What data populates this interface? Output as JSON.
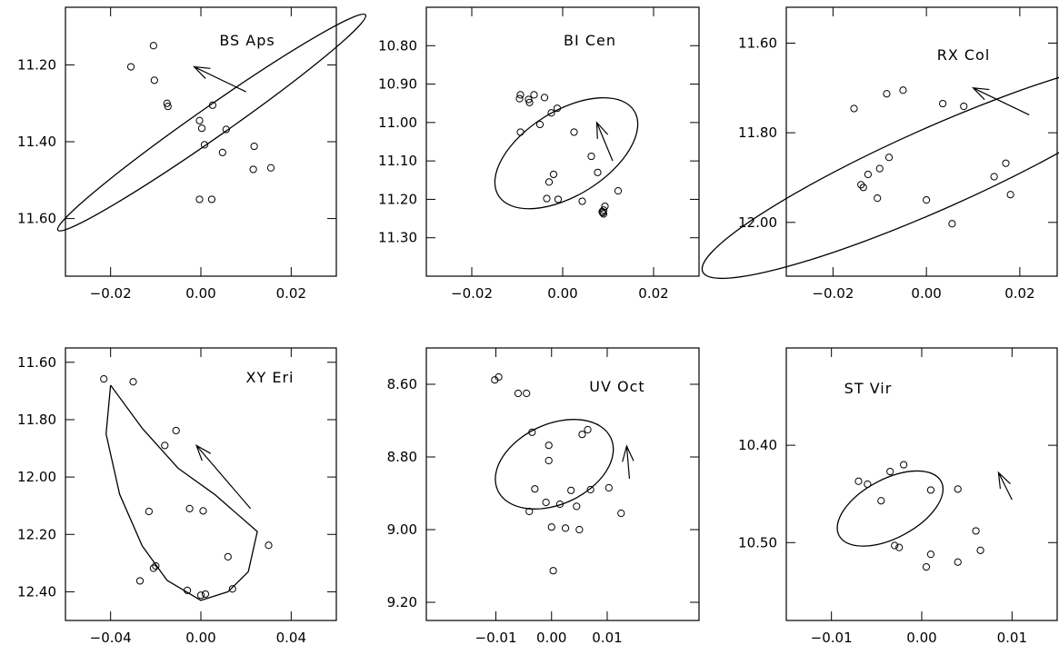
{
  "chart_data": [
    {
      "type": "scatter",
      "title": "BS Aps",
      "xlim": [
        -0.03,
        0.03
      ],
      "ylim": [
        11.75,
        11.05
      ],
      "xticks": [
        -0.02,
        0.0,
        0.02
      ],
      "xtick_labels": [
        "−0.02",
        "0.00",
        "0.02"
      ],
      "yticks": [
        11.2,
        11.4,
        11.6
      ],
      "ytick_labels": [
        "11.20",
        "11.40",
        "11.60"
      ],
      "points": [
        [
          -0.0155,
          11.205
        ],
        [
          -0.0105,
          11.15
        ],
        [
          -0.0103,
          11.24
        ],
        [
          -0.0075,
          11.3
        ],
        [
          -0.0073,
          11.308
        ],
        [
          -0.0003,
          11.345
        ],
        [
          0.0002,
          11.365
        ],
        [
          0.0008,
          11.408
        ],
        [
          0.0024,
          11.55
        ],
        [
          0.0026,
          11.305
        ],
        [
          0.0048,
          11.428
        ],
        [
          0.0056,
          11.368
        ],
        [
          0.0116,
          11.472
        ],
        [
          0.0118,
          11.412
        ],
        [
          0.0155,
          11.468
        ],
        [
          -0.0003,
          11.55
        ]
      ],
      "ellipse": {
        "cx": 0.0024,
        "cy": 11.35,
        "rx": 0.013,
        "ry": 0.072,
        "tilt_deg": -35
      },
      "arrow": {
        "from": [
          0.01,
          11.27
        ],
        "to": [
          -0.0015,
          11.205
        ]
      }
    },
    {
      "type": "scatter",
      "title": "BI Cen",
      "xlim": [
        -0.03,
        0.03
      ],
      "ylim": [
        11.4,
        10.7
      ],
      "xticks": [
        -0.02,
        0.0,
        0.02
      ],
      "xtick_labels": [
        "−0.02",
        "0.00",
        "0.02"
      ],
      "yticks": [
        10.8,
        10.9,
        11.0,
        11.1,
        11.2,
        11.3
      ],
      "ytick_labels": [
        "10.80",
        "10.90",
        "11.00",
        "11.10",
        "11.20",
        "11.30"
      ],
      "points": [
        [
          -0.0093,
          10.928
        ],
        [
          -0.0095,
          10.938
        ],
        [
          -0.0093,
          11.025
        ],
        [
          -0.0075,
          10.94
        ],
        [
          -0.0073,
          10.948
        ],
        [
          -0.0063,
          10.928
        ],
        [
          -0.005,
          11.005
        ],
        [
          -0.004,
          10.935
        ],
        [
          -0.003,
          11.155
        ],
        [
          -0.0025,
          10.975
        ],
        [
          -0.002,
          11.135
        ],
        [
          -0.0012,
          10.963
        ],
        [
          -0.001,
          11.2
        ],
        [
          -0.0035,
          11.198
        ],
        [
          0.0025,
          11.025
        ],
        [
          0.0043,
          11.205
        ],
        [
          0.0063,
          11.088
        ],
        [
          0.0077,
          11.13
        ],
        [
          0.0087,
          11.232
        ],
        [
          0.0088,
          11.235
        ],
        [
          0.009,
          11.228
        ],
        [
          0.0093,
          11.218
        ],
        [
          0.0122,
          11.178
        ],
        [
          0.009,
          11.238
        ]
      ],
      "ellipse": {
        "cx": 0.0008,
        "cy": 11.08,
        "rx": 0.0055,
        "ry": 0.2,
        "tilt_deg": -32
      },
      "arrow": {
        "from": [
          0.011,
          11.1
        ],
        "to": [
          0.0075,
          11.0
        ]
      }
    },
    {
      "type": "scatter",
      "title": "RX Col",
      "xlim": [
        -0.03,
        0.028
      ],
      "ylim": [
        12.12,
        11.52
      ],
      "xticks": [
        -0.02,
        0.0,
        0.02
      ],
      "xtick_labels": [
        "−0.02",
        "0.00",
        "0.02"
      ],
      "yticks": [
        11.6,
        11.8,
        12.0
      ],
      "ytick_labels": [
        "11.60",
        "11.80",
        "12.00"
      ],
      "points": [
        [
          -0.0155,
          11.746
        ],
        [
          -0.014,
          11.916
        ],
        [
          -0.0135,
          11.922
        ],
        [
          -0.0125,
          11.893
        ],
        [
          -0.0105,
          11.946
        ],
        [
          -0.01,
          11.88
        ],
        [
          -0.0085,
          11.713
        ],
        [
          -0.008,
          11.855
        ],
        [
          -0.005,
          11.705
        ],
        [
          0.0,
          11.95
        ],
        [
          0.0035,
          11.735
        ],
        [
          0.0055,
          12.003
        ],
        [
          0.008,
          11.741
        ],
        [
          0.0145,
          11.898
        ],
        [
          0.017,
          11.868
        ],
        [
          0.018,
          11.938
        ]
      ],
      "ellipse": {
        "cx": 0.0018,
        "cy": 11.88,
        "rx": 0.017,
        "ry": 0.165,
        "tilt_deg": -24
      },
      "arrow": {
        "from": [
          0.022,
          11.76
        ],
        "to": [
          0.01,
          11.7
        ]
      }
    },
    {
      "type": "scatter",
      "title": "XY Eri",
      "xlim": [
        -0.06,
        0.06
      ],
      "ylim": [
        12.5,
        11.55
      ],
      "xticks": [
        -0.04,
        0.0,
        0.04
      ],
      "xtick_labels": [
        "−0.04",
        "0.00",
        "0.04"
      ],
      "yticks": [
        11.6,
        11.8,
        12.0,
        12.2,
        12.4
      ],
      "ytick_labels": [
        "11.60",
        "11.80",
        "12.00",
        "12.20",
        "12.40"
      ],
      "points": [
        [
          -0.043,
          11.658
        ],
        [
          -0.03,
          11.668
        ],
        [
          -0.027,
          12.362
        ],
        [
          -0.023,
          12.12
        ],
        [
          -0.021,
          12.318
        ],
        [
          -0.02,
          12.31
        ],
        [
          -0.016,
          11.89
        ],
        [
          -0.011,
          11.838
        ],
        [
          -0.006,
          12.395
        ],
        [
          -0.005,
          12.11
        ],
        [
          0.0,
          12.412
        ],
        [
          0.001,
          12.118
        ],
        [
          0.002,
          12.408
        ],
        [
          0.012,
          12.278
        ],
        [
          0.014,
          12.39
        ],
        [
          0.03,
          12.238
        ]
      ],
      "curve": [
        [
          -0.04,
          11.68
        ],
        [
          -0.026,
          11.83
        ],
        [
          -0.01,
          11.97
        ],
        [
          0.006,
          12.06
        ],
        [
          0.025,
          12.19
        ],
        [
          0.021,
          12.33
        ],
        [
          0.012,
          12.4
        ],
        [
          0.0,
          12.43
        ],
        [
          -0.015,
          12.36
        ],
        [
          -0.026,
          12.24
        ],
        [
          -0.036,
          12.06
        ],
        [
          -0.042,
          11.85
        ],
        [
          -0.04,
          11.68
        ]
      ],
      "arrow": {
        "from": [
          0.022,
          12.11
        ],
        "to": [
          -0.002,
          11.89
        ]
      }
    },
    {
      "type": "scatter",
      "title": "UV Oct",
      "xlim": [
        -0.0225,
        0.0265
      ],
      "ylim": [
        9.25,
        8.5
      ],
      "xticks": [
        -0.01,
        0.0,
        0.01
      ],
      "xtick_labels": [
        "−0.01",
        "0.00",
        "0.01"
      ],
      "yticks": [
        8.6,
        8.8,
        9.0,
        9.2
      ],
      "ytick_labels": [
        "8.60",
        "8.80",
        "9.00",
        "9.20"
      ],
      "points": [
        [
          -0.0102,
          8.588
        ],
        [
          -0.0095,
          8.58
        ],
        [
          -0.006,
          8.625
        ],
        [
          -0.0045,
          8.625
        ],
        [
          -0.004,
          8.95
        ],
        [
          -0.0035,
          8.732
        ],
        [
          -0.003,
          8.888
        ],
        [
          -0.001,
          8.925
        ],
        [
          -0.0005,
          8.768
        ],
        [
          -0.0005,
          8.81
        ],
        [
          0.0,
          8.993
        ],
        [
          0.0003,
          9.113
        ],
        [
          0.0015,
          8.93
        ],
        [
          0.0025,
          8.996
        ],
        [
          0.0035,
          8.892
        ],
        [
          0.0045,
          8.936
        ],
        [
          0.0055,
          8.738
        ],
        [
          0.0065,
          8.725
        ],
        [
          0.007,
          8.89
        ],
        [
          0.0103,
          8.885
        ],
        [
          0.0125,
          8.955
        ],
        [
          0.005,
          9.0
        ]
      ],
      "ellipse": {
        "cx": 0.0005,
        "cy": 8.82,
        "rx": 0.0035,
        "ry": 0.2,
        "tilt_deg": -25
      },
      "arrow": {
        "from": [
          0.014,
          8.86
        ],
        "to": [
          0.0135,
          8.77
        ]
      }
    },
    {
      "type": "scatter",
      "title": "ST Vir",
      "xlim": [
        -0.015,
        0.015
      ],
      "ylim": [
        10.58,
        10.3
      ],
      "xticks": [
        -0.01,
        0.0,
        0.01
      ],
      "xtick_labels": [
        "−0.01",
        "0.00",
        "0.01"
      ],
      "yticks": [
        10.4,
        10.5
      ],
      "ytick_labels": [
        "10.40",
        "10.50"
      ],
      "points": [
        [
          -0.007,
          10.437
        ],
        [
          -0.006,
          10.44
        ],
        [
          -0.0045,
          10.457
        ],
        [
          -0.0035,
          10.427
        ],
        [
          -0.002,
          10.42
        ],
        [
          -0.003,
          10.503
        ],
        [
          -0.0025,
          10.505
        ],
        [
          0.0005,
          10.525
        ],
        [
          0.001,
          10.446
        ],
        [
          0.001,
          10.512
        ],
        [
          0.004,
          10.445
        ],
        [
          0.004,
          10.52
        ],
        [
          0.006,
          10.488
        ],
        [
          0.0065,
          10.508
        ]
      ],
      "ellipse": {
        "cx": -0.0035,
        "cy": 10.465,
        "rx": 0.002,
        "ry": 0.055,
        "tilt_deg": -28
      },
      "arrow": {
        "from": [
          0.01,
          10.456
        ],
        "to": [
          0.0085,
          10.428
        ]
      }
    }
  ]
}
